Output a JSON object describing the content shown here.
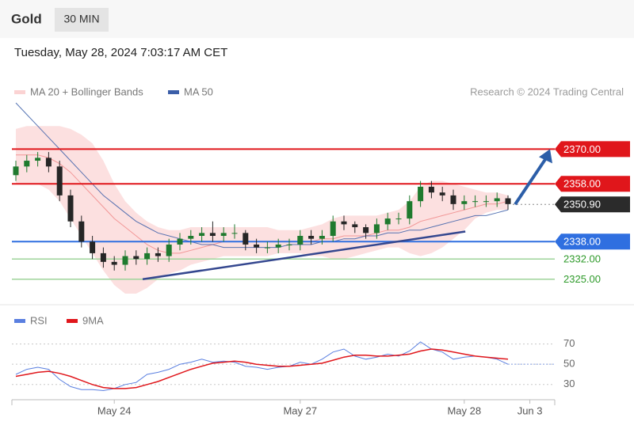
{
  "header": {
    "title": "Gold",
    "interval": "30 MIN",
    "timestamp": "Tuesday, May 28, 2024 7:03:17 AM CET",
    "credit": "Research © 2024 Trading Central"
  },
  "chart_data": [
    {
      "type": "candlestick",
      "ylim": [
        2317,
        2386
      ],
      "up_color": "#1f7a2e",
      "down_color": "#262626",
      "open": [
        2361,
        2364,
        2366,
        2367,
        2364,
        2354,
        2345,
        2338,
        2334,
        2331,
        2330,
        2333,
        2332,
        2334,
        2333,
        2337,
        2339,
        2340,
        2341,
        2340,
        2341,
        2341,
        2337,
        2336,
        2336,
        2337,
        2337,
        2340,
        2339,
        2340,
        2345,
        2344,
        2343,
        2341,
        2344,
        2346,
        2346,
        2352,
        2357,
        2355,
        2354,
        2351,
        2352,
        2352,
        2352,
        2353,
        null,
        null
      ],
      "high": [
        2366,
        2368,
        2369,
        2369,
        2366,
        2356,
        2347,
        2340,
        2336,
        2333,
        2335,
        2335,
        2336,
        2336,
        2339,
        2341,
        2342,
        2343,
        2345,
        2343,
        2344,
        2342,
        2339,
        2338,
        2339,
        2339,
        2342,
        2342,
        2342,
        2347,
        2347,
        2345,
        2344,
        2346,
        2348,
        2348,
        2354,
        2359,
        2359,
        2357,
        2356,
        2354,
        2354,
        2354,
        2355,
        2354,
        null,
        null
      ],
      "low": [
        2359,
        2362,
        2364,
        2362,
        2352,
        2343,
        2336,
        2332,
        2329,
        2328,
        2328,
        2330,
        2330,
        2331,
        2331,
        2335,
        2337,
        2338,
        2338,
        2338,
        2339,
        2335,
        2334,
        2334,
        2334,
        2335,
        2335,
        2337,
        2337,
        2338,
        2342,
        2341,
        2339,
        2339,
        2342,
        2344,
        2344,
        2350,
        2353,
        2352,
        2349,
        2349,
        2350,
        2350,
        2350,
        2349,
        null,
        null
      ],
      "close": [
        2364,
        2366,
        2367,
        2364,
        2354,
        2345,
        2338,
        2334,
        2331,
        2330,
        2333,
        2332,
        2334,
        2333,
        2337,
        2339,
        2340,
        2341,
        2340,
        2341,
        2341,
        2337,
        2336,
        2336,
        2337,
        2337,
        2340,
        2339,
        2340,
        2345,
        2344,
        2343,
        2341,
        2344,
        2346,
        2346,
        2352,
        2357,
        2355,
        2354,
        2351,
        2352,
        2352,
        2352,
        2353,
        2351,
        null,
        null
      ],
      "overlays": [
        {
          "name": "MA 20 + Bollinger Bands",
          "color": "#f08a8a",
          "band_color": "#fbd3d3",
          "values": [
            2368,
            2368,
            2368,
            2367,
            2365,
            2362,
            2358,
            2354,
            2350,
            2346,
            2343,
            2340,
            2337,
            2335,
            2334,
            2334,
            2335,
            2336,
            2337,
            2338,
            2338,
            2338,
            2338,
            2338,
            2338,
            2338,
            2338,
            2338,
            2339,
            2339,
            2340,
            2340,
            2340,
            2341,
            2342,
            2342,
            2343,
            2345,
            2346,
            2347,
            2348,
            2349,
            2350,
            2351,
            2351,
            2352,
            null,
            null
          ],
          "upper": [
            2377,
            2378,
            2378,
            2378,
            2378,
            2377,
            2375,
            2372,
            2366,
            2358,
            2352,
            2348,
            2345,
            2343,
            2342,
            2342,
            2343,
            2343,
            2343,
            2343,
            2343,
            2343,
            2343,
            2343,
            2342,
            2342,
            2342,
            2343,
            2344,
            2346,
            2347,
            2347,
            2347,
            2347,
            2348,
            2349,
            2352,
            2357,
            2359,
            2359,
            2358,
            2357,
            2356,
            2355,
            2355,
            2354,
            null,
            null
          ],
          "lower": [
            2358,
            2358,
            2358,
            2356,
            2352,
            2346,
            2340,
            2334,
            2328,
            2323,
            2320,
            2320,
            2322,
            2325,
            2327,
            2328,
            2330,
            2331,
            2332,
            2333,
            2333,
            2333,
            2333,
            2333,
            2334,
            2334,
            2334,
            2333,
            2333,
            2332,
            2332,
            2333,
            2334,
            2335,
            2336,
            2336,
            2334,
            2333,
            2334,
            2336,
            2339,
            2342,
            2346,
            2348,
            2349,
            2349,
            null,
            null
          ]
        },
        {
          "name": "MA 50",
          "color": "#3b5ea8",
          "values": [
            2386,
            2382,
            2378,
            2374,
            2370,
            2366,
            2362,
            2358,
            2354,
            2351,
            2348,
            2345,
            2343,
            2341,
            2340,
            2339,
            2338,
            2337,
            2337,
            2336,
            2336,
            2336,
            2336,
            2336,
            2336,
            2337,
            2337,
            2337,
            2338,
            2338,
            2339,
            2339,
            2340,
            2340,
            2341,
            2341,
            2342,
            2342,
            2343,
            2344,
            2345,
            2346,
            2347,
            2347,
            2348,
            2349,
            null,
            null
          ]
        }
      ],
      "levels": [
        {
          "value": 2370,
          "label": "2370.00",
          "color": "#e0161b",
          "boxed": true
        },
        {
          "value": 2358,
          "label": "2358.00",
          "color": "#e0161b",
          "boxed": true
        },
        {
          "value": 2338,
          "label": "2338.00",
          "color": "#2f6fe0",
          "boxed": true
        },
        {
          "value": 2332,
          "label": "2332.00",
          "color": "#9ed39a",
          "text_color": "#2e9a2a",
          "boxed": false
        },
        {
          "value": 2325,
          "label": "2325.00",
          "color": "#9ed39a",
          "text_color": "#2e9a2a",
          "boxed": false
        }
      ],
      "last_price": {
        "value": 2350.9,
        "label": "2350.90",
        "color": "#2b2b2b"
      },
      "trendline": {
        "x": [
          11.6,
          41.1
        ],
        "y": [
          2325,
          2341.5
        ],
        "color": "#34478f"
      },
      "arrow_color": "#2c5ea8"
    },
    {
      "type": "line",
      "ylim": [
        15,
        97
      ],
      "yticks": [
        70,
        50,
        30
      ],
      "grid": true,
      "categories": [
        null,
        null,
        null,
        null,
        null,
        null,
        null,
        null,
        null,
        "May 24",
        null,
        null,
        null,
        null,
        null,
        null,
        null,
        null,
        null,
        null,
        null,
        null,
        null,
        null,
        null,
        null,
        "May 27",
        null,
        null,
        null,
        null,
        null,
        null,
        null,
        null,
        null,
        null,
        null,
        null,
        null,
        null,
        "May 28",
        null,
        null,
        null,
        null,
        null,
        "Jun 3"
      ],
      "series": [
        {
          "name": "RSI",
          "color": "#5a7fe0",
          "values": [
            40,
            45,
            47,
            45,
            35,
            28,
            25,
            25,
            24,
            26,
            30,
            32,
            40,
            42,
            45,
            50,
            52,
            55,
            52,
            53,
            52,
            48,
            47,
            45,
            47,
            48,
            52,
            50,
            55,
            62,
            65,
            58,
            55,
            57,
            60,
            58,
            63,
            72,
            65,
            62,
            55,
            57,
            58,
            57,
            55,
            50,
            null,
            null
          ]
        },
        {
          "name": "9MA",
          "color": "#e0161b",
          "values": [
            38,
            40,
            42,
            43,
            41,
            38,
            34,
            30,
            27,
            26,
            26,
            27,
            30,
            33,
            37,
            41,
            45,
            48,
            51,
            52,
            53,
            52,
            50,
            49,
            48,
            48,
            49,
            50,
            51,
            54,
            57,
            59,
            59,
            58,
            58,
            59,
            60,
            63,
            65,
            64,
            62,
            60,
            58,
            57,
            56,
            55,
            null,
            null
          ]
        }
      ]
    }
  ]
}
